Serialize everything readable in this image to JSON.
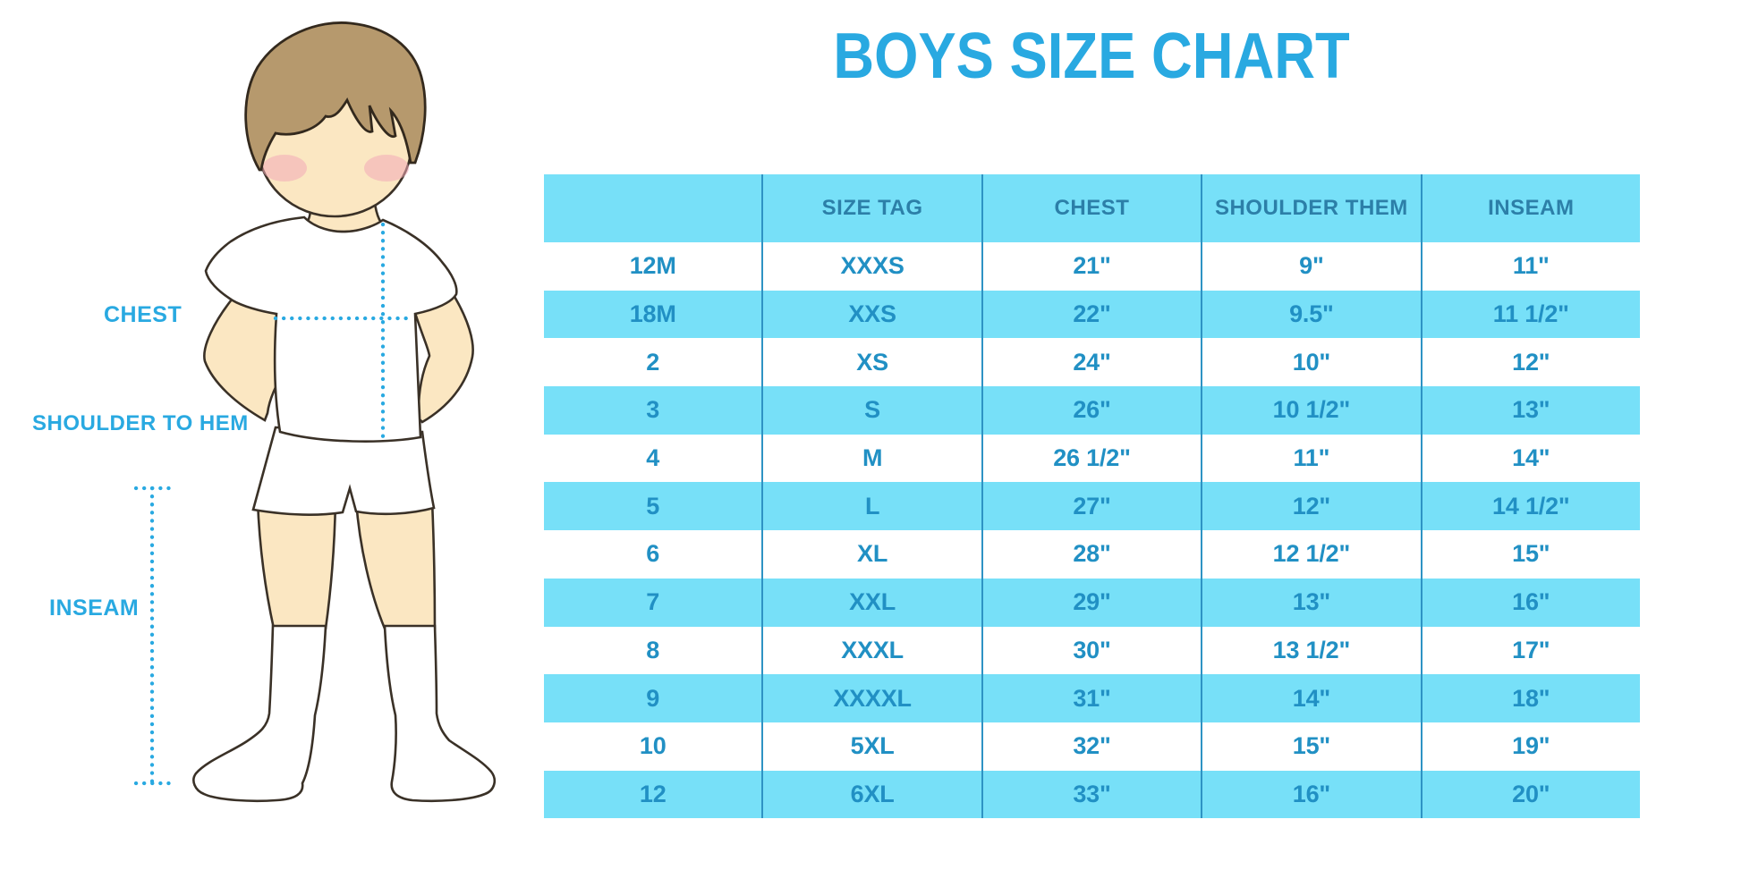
{
  "title": "BOYS SIZE CHART",
  "colors": {
    "accent": "#29A9E1",
    "header_bg": "#77E0F8",
    "row_alt_bg": "#77E0F8",
    "row_bg": "#FFFFFF",
    "header_text": "#2C7FA8",
    "body_text": "#2190C4",
    "grid_line": "#2E93C4",
    "outline": "#3A3127",
    "hair_outline": "#33291D",
    "skin": "#FBE7C2",
    "hair": "#B6996D",
    "blush": "#F2A9B8",
    "garment": "#FFFFFF"
  },
  "figure": {
    "labels": {
      "chest": "CHEST",
      "shoulder_to_hem": "SHOULDER TO HEM",
      "inseam": "INSEAM"
    }
  },
  "chart_data": {
    "type": "table",
    "title": "BOYS SIZE CHART",
    "columns": [
      "",
      "SIZE TAG",
      "CHEST",
      "SHOULDER THEM",
      "INSEAM"
    ],
    "rows": [
      [
        "12M",
        "XXXS",
        "21\"",
        "9\"",
        "11\""
      ],
      [
        "18M",
        "XXS",
        "22\"",
        "9.5\"",
        "11 1/2\""
      ],
      [
        "2",
        "XS",
        "24\"",
        "10\"",
        "12\""
      ],
      [
        "3",
        "S",
        "26\"",
        "10 1/2\"",
        "13\""
      ],
      [
        "4",
        "M",
        "26 1/2\"",
        "11\"",
        "14\""
      ],
      [
        "5",
        "L",
        "27\"",
        "12\"",
        "14 1/2\""
      ],
      [
        "6",
        "XL",
        "28\"",
        "12 1/2\"",
        "15\""
      ],
      [
        "7",
        "XXL",
        "29\"",
        "13\"",
        "16\""
      ],
      [
        "8",
        "XXXL",
        "30\"",
        "13 1/2\"",
        "17\""
      ],
      [
        "9",
        "XXXXL",
        "31\"",
        "14\"",
        "18\""
      ],
      [
        "10",
        "5XL",
        "32\"",
        "15\"",
        "19\""
      ],
      [
        "12",
        "6XL",
        "33\"",
        "16\"",
        "20\""
      ]
    ]
  }
}
